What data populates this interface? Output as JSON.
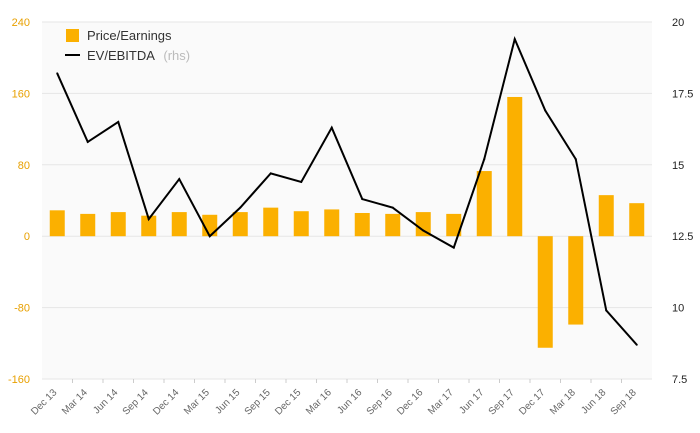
{
  "chart_data": {
    "type": "bar+line",
    "categories": [
      "Dec 13",
      "Mar 14",
      "Jun 14",
      "Sep 14",
      "Dec 14",
      "Mar 15",
      "Jun 15",
      "Sep 15",
      "Dec 15",
      "Mar 16",
      "Jun 16",
      "Sep 16",
      "Dec 16",
      "Mar 17",
      "Jun 17",
      "Sep 17",
      "Dec 17",
      "Mar 18",
      "Jun 18",
      "Sep 18"
    ],
    "series": [
      {
        "name": "Price/Earnings",
        "type": "bar",
        "axis": "left",
        "values": [
          29,
          25,
          27,
          23,
          27,
          24,
          27,
          32,
          28,
          30,
          26,
          25,
          27,
          25,
          73,
          156,
          -125,
          -99,
          46,
          37
        ]
      },
      {
        "name": "EV/EBITDA",
        "type": "line",
        "axis": "right",
        "values": [
          18.2,
          15.8,
          16.5,
          13.1,
          14.5,
          12.5,
          13.5,
          14.7,
          14.4,
          16.3,
          13.8,
          13.5,
          12.7,
          12.1,
          15.2,
          19.4,
          16.9,
          15.2,
          9.9,
          8.7
        ]
      }
    ],
    "legend": {
      "bar_label": "Price/Earnings",
      "line_label": "EV/EBITDA",
      "line_suffix": "(rhs)",
      "placement": "top-left"
    },
    "y_left": {
      "min": -160,
      "max": 240,
      "ticks": [
        240,
        160,
        80,
        0,
        -80,
        -160
      ],
      "tick_labels": [
        "240",
        "160",
        "80",
        "0",
        "-80",
        "-160"
      ]
    },
    "y_right": {
      "min": 7.5,
      "max": 20,
      "ticks": [
        20,
        17.5,
        15,
        12.5,
        10,
        7.5
      ],
      "tick_labels": [
        "20",
        "17.5",
        "15",
        "12.5",
        "10",
        "7.5"
      ]
    },
    "grid": true,
    "colors": {
      "bar": "#fbb000",
      "line": "#000000",
      "left_tick_labels": "#e8a000",
      "grid": "#e6e6e6",
      "plot_background": "#fafafa"
    },
    "title": "",
    "xlabel": "",
    "ylabel": ""
  }
}
